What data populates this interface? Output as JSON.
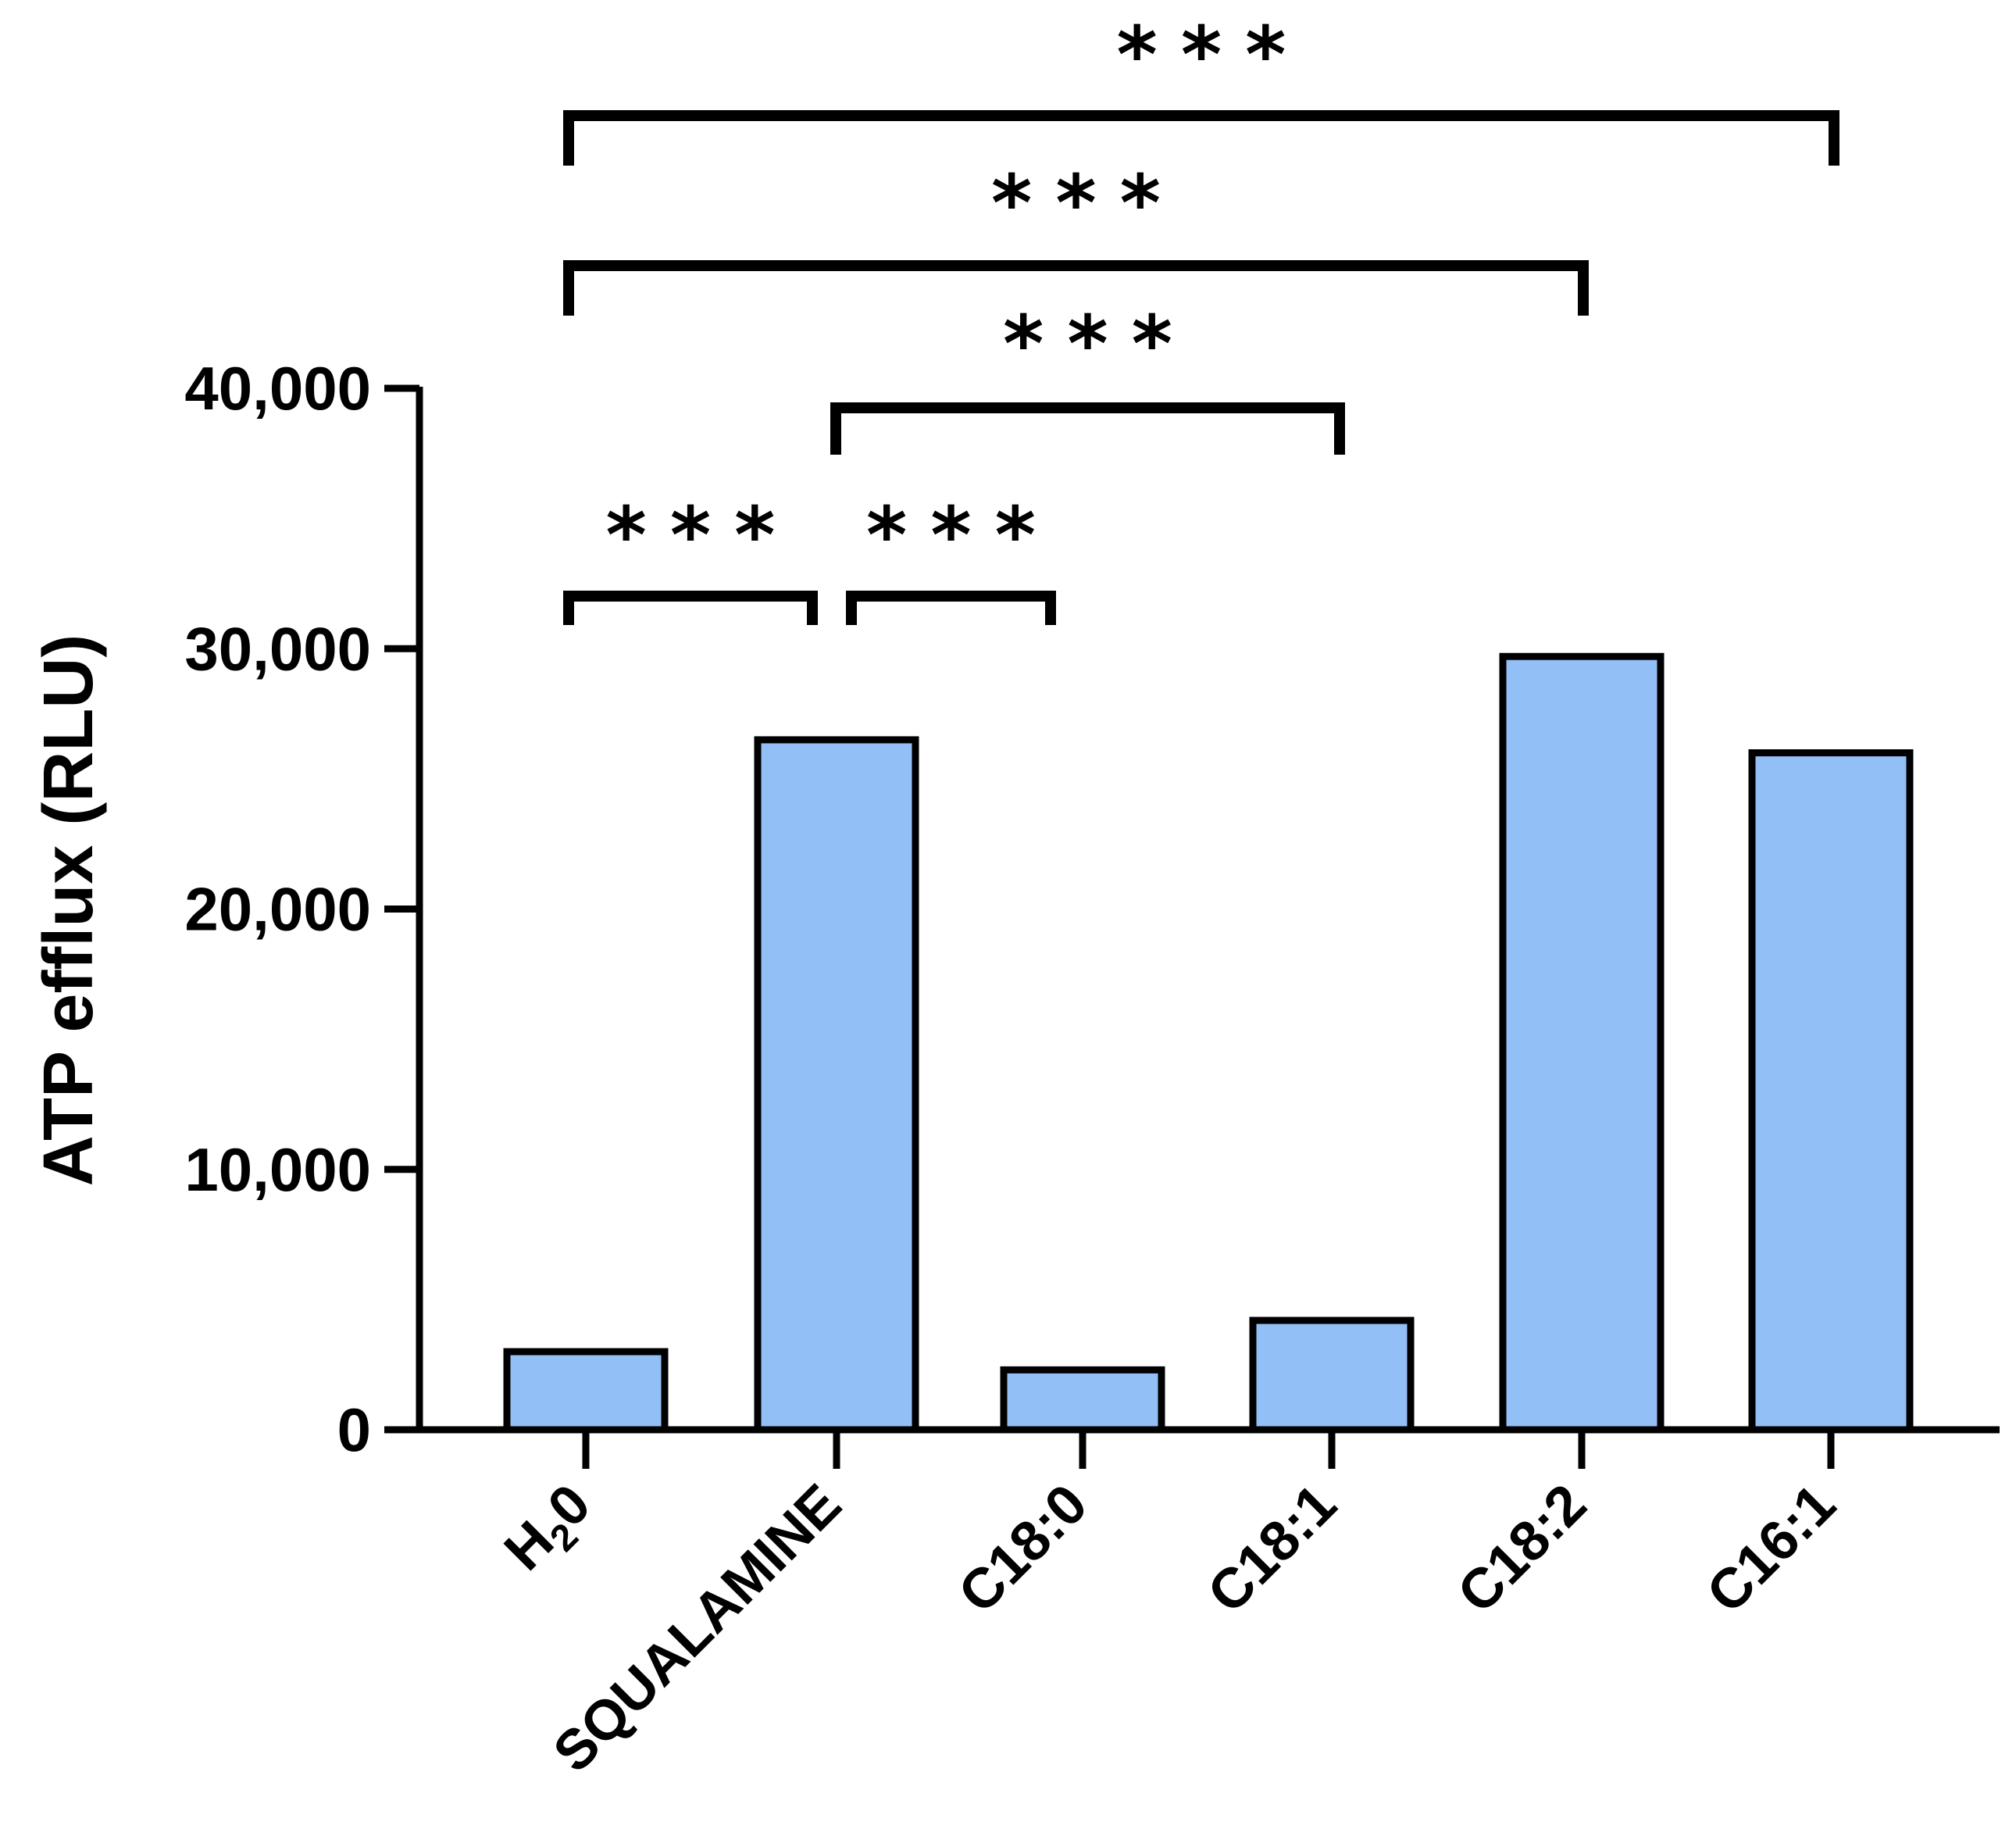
{
  "chart_data": {
    "type": "bar",
    "title": "",
    "xlabel": "",
    "ylabel": "ATP efflux (RLU)",
    "ylim": [
      0,
      40000
    ],
    "yticks": [
      0,
      10000,
      20000,
      30000,
      40000
    ],
    "ytick_labels": [
      "0",
      "10,000",
      "20,000",
      "30,000",
      "40,000"
    ],
    "categories": [
      {
        "base": "H",
        "sub": "2",
        "tail": "0"
      },
      {
        "base": "SQUALAMINE",
        "sub": "",
        "tail": ""
      },
      {
        "base": "C18:0",
        "sub": "",
        "tail": ""
      },
      {
        "base": "C18:1",
        "sub": "",
        "tail": ""
      },
      {
        "base": "C18:2",
        "sub": "",
        "tail": ""
      },
      {
        "base": "C16:1",
        "sub": "",
        "tail": ""
      }
    ],
    "values": [
      3000,
      26500,
      2300,
      4200,
      29700,
      26000
    ],
    "bar_color": "#93bff7",
    "grid": false,
    "legend": "none",
    "significance": [
      {
        "from": 0,
        "to": 1,
        "label": "***"
      },
      {
        "from": 1,
        "to": 2,
        "label": "***"
      },
      {
        "from": 1,
        "to": 3,
        "label": "***"
      },
      {
        "from": 0,
        "to": 4,
        "label": "***"
      },
      {
        "from": 0,
        "to": 5,
        "label": "***"
      }
    ]
  }
}
